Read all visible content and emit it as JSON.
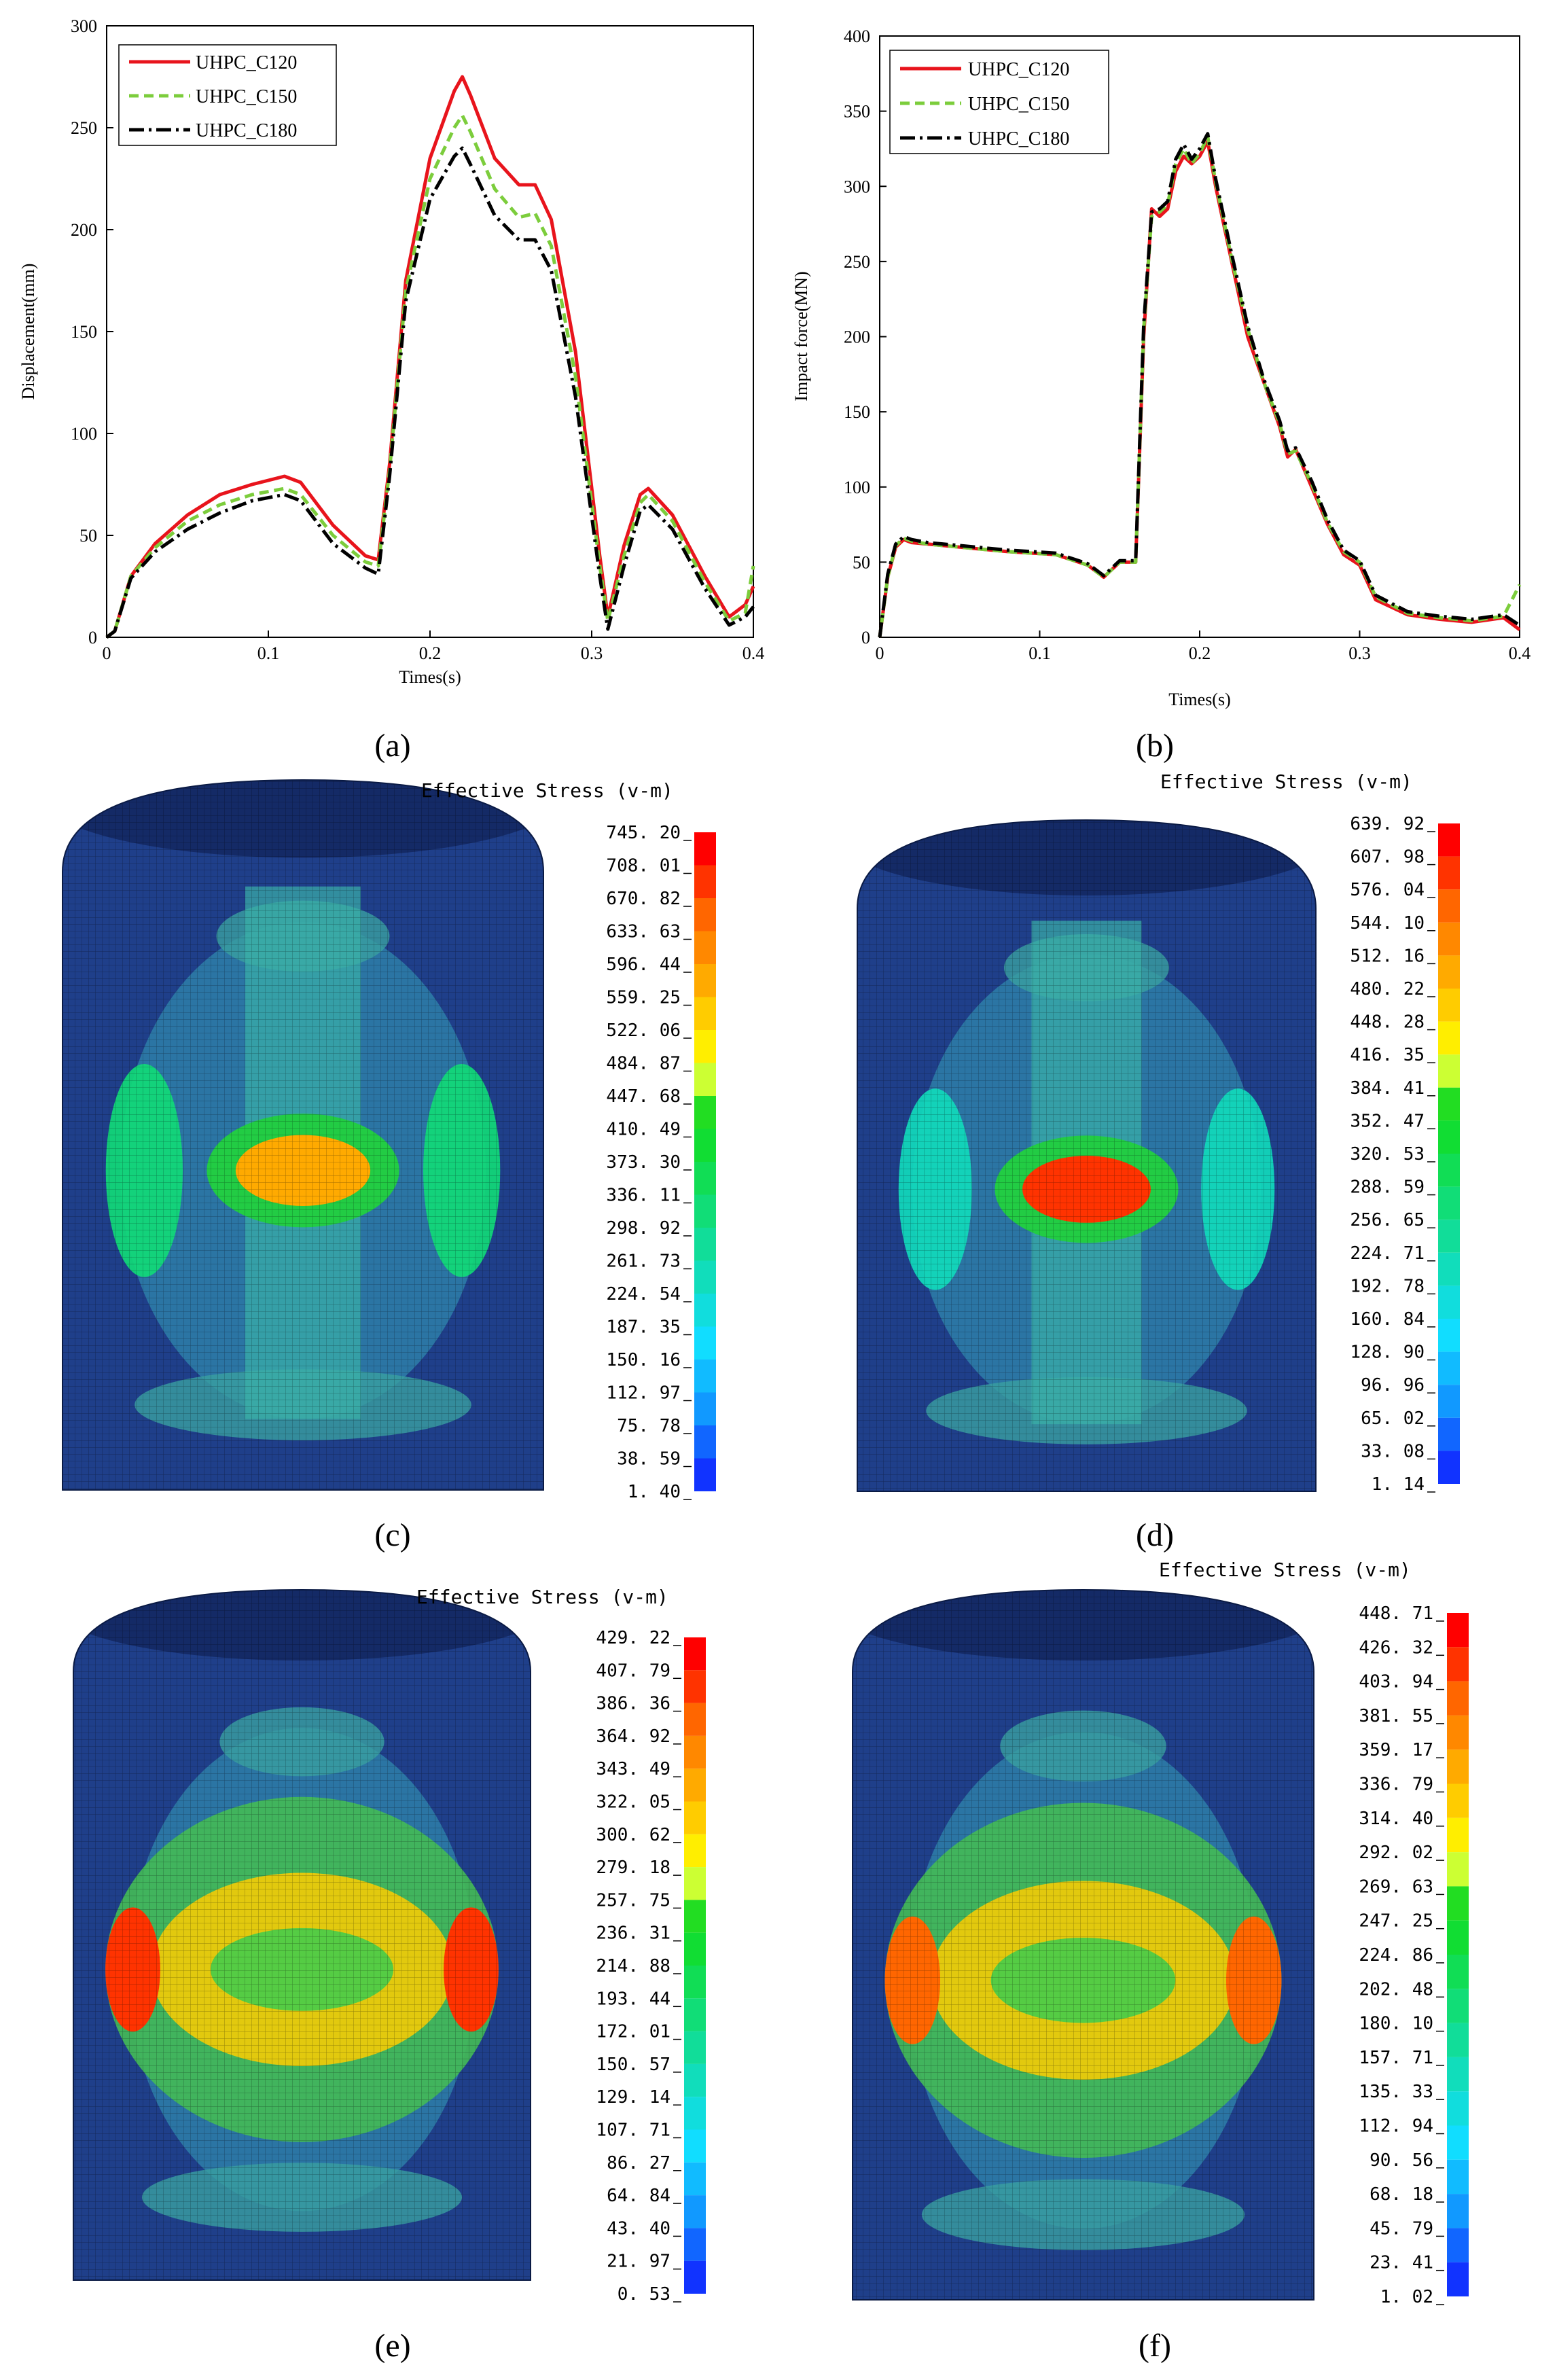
{
  "chart_data": [
    {
      "type": "line",
      "panel_label": "(a)",
      "xlabel": "Times(s)",
      "ylabel": "Displacement(mm)",
      "xlim": [
        0,
        0.4
      ],
      "ylim": [
        0,
        300
      ],
      "xticks": [
        "0",
        "0.1",
        "0.2",
        "0.3",
        "0.4"
      ],
      "yticks": [
        "0",
        "50",
        "100",
        "150",
        "200",
        "250",
        "300"
      ],
      "legend_position": "top-left",
      "series": [
        {
          "name": "UHPC_C120",
          "color": "#e8141c",
          "dash": "solid",
          "x": [
            0,
            0.005,
            0.015,
            0.03,
            0.05,
            0.07,
            0.09,
            0.11,
            0.12,
            0.14,
            0.16,
            0.168,
            0.175,
            0.185,
            0.2,
            0.215,
            0.22,
            0.225,
            0.24,
            0.255,
            0.265,
            0.275,
            0.29,
            0.305,
            0.31,
            0.32,
            0.33,
            0.335,
            0.35,
            0.37,
            0.385,
            0.395,
            0.4
          ],
          "y": [
            0,
            3,
            30,
            46,
            60,
            70,
            75,
            79,
            76,
            55,
            40,
            38,
            85,
            175,
            235,
            268,
            275,
            266,
            235,
            222,
            222,
            205,
            140,
            40,
            10,
            45,
            70,
            73,
            60,
            30,
            10,
            16,
            25
          ]
        },
        {
          "name": "UHPC_C150",
          "color": "#7ccd3c",
          "dash": "dashed",
          "x": [
            0,
            0.005,
            0.015,
            0.03,
            0.05,
            0.07,
            0.09,
            0.11,
            0.12,
            0.14,
            0.16,
            0.168,
            0.175,
            0.185,
            0.2,
            0.215,
            0.22,
            0.225,
            0.24,
            0.255,
            0.265,
            0.275,
            0.29,
            0.305,
            0.31,
            0.32,
            0.33,
            0.335,
            0.35,
            0.37,
            0.385,
            0.395,
            0.4
          ],
          "y": [
            0,
            3,
            30,
            44,
            57,
            65,
            70,
            73,
            70,
            50,
            37,
            35,
            82,
            170,
            225,
            250,
            256,
            248,
            220,
            206,
            208,
            192,
            128,
            35,
            8,
            40,
            66,
            70,
            57,
            27,
            8,
            12,
            35
          ]
        },
        {
          "name": "UHPC_C180",
          "color": "#000000",
          "dash": "dashdot",
          "x": [
            0,
            0.005,
            0.015,
            0.03,
            0.05,
            0.07,
            0.09,
            0.11,
            0.12,
            0.14,
            0.16,
            0.168,
            0.175,
            0.185,
            0.2,
            0.215,
            0.22,
            0.225,
            0.24,
            0.255,
            0.265,
            0.275,
            0.29,
            0.305,
            0.31,
            0.32,
            0.33,
            0.335,
            0.35,
            0.37,
            0.385,
            0.395,
            0.4
          ],
          "y": [
            0,
            3,
            29,
            42,
            53,
            61,
            67,
            70,
            67,
            46,
            34,
            31,
            79,
            165,
            215,
            236,
            240,
            232,
            207,
            195,
            195,
            180,
            118,
            30,
            4,
            35,
            62,
            65,
            53,
            24,
            6,
            10,
            15
          ]
        }
      ]
    },
    {
      "type": "line",
      "panel_label": "(b)",
      "xlabel": "Times(s)",
      "ylabel": "Impact force(MN)",
      "xlim": [
        0,
        0.4
      ],
      "ylim": [
        0,
        400
      ],
      "xticks": [
        "0",
        "0.1",
        "0.2",
        "0.3",
        "0.4"
      ],
      "yticks": [
        "0",
        "50",
        "100",
        "150",
        "200",
        "250",
        "300",
        "350",
        "400"
      ],
      "legend_position": "top-left",
      "series": [
        {
          "name": "UHPC_C120",
          "color": "#e8141c",
          "dash": "solid",
          "x": [
            0,
            0.005,
            0.01,
            0.015,
            0.02,
            0.03,
            0.05,
            0.08,
            0.11,
            0.13,
            0.14,
            0.145,
            0.15,
            0.16,
            0.165,
            0.17,
            0.175,
            0.18,
            0.185,
            0.19,
            0.195,
            0.2,
            0.205,
            0.21,
            0.22,
            0.23,
            0.24,
            0.25,
            0.255,
            0.26,
            0.27,
            0.28,
            0.29,
            0.3,
            0.31,
            0.33,
            0.35,
            0.37,
            0.39,
            0.4
          ],
          "y": [
            0,
            40,
            60,
            65,
            63,
            62,
            60,
            57,
            55,
            48,
            40,
            45,
            50,
            50,
            200,
            285,
            280,
            285,
            310,
            320,
            315,
            320,
            330,
            300,
            250,
            200,
            170,
            140,
            120,
            125,
            100,
            75,
            55,
            48,
            25,
            15,
            12,
            10,
            13,
            5
          ]
        },
        {
          "name": "UHPC_C150",
          "color": "#7ccd3c",
          "dash": "dashed",
          "x": [
            0,
            0.005,
            0.01,
            0.015,
            0.02,
            0.03,
            0.05,
            0.08,
            0.11,
            0.13,
            0.14,
            0.145,
            0.15,
            0.16,
            0.165,
            0.17,
            0.175,
            0.18,
            0.185,
            0.19,
            0.195,
            0.2,
            0.205,
            0.21,
            0.22,
            0.23,
            0.24,
            0.25,
            0.255,
            0.26,
            0.27,
            0.28,
            0.29,
            0.3,
            0.31,
            0.33,
            0.35,
            0.37,
            0.39,
            0.4
          ],
          "y": [
            0,
            40,
            61,
            66,
            64,
            62,
            60,
            57,
            55,
            48,
            40,
            45,
            50,
            50,
            205,
            280,
            283,
            288,
            315,
            325,
            315,
            322,
            333,
            303,
            252,
            205,
            170,
            142,
            122,
            124,
            102,
            76,
            57,
            50,
            27,
            16,
            13,
            11,
            14,
            35
          ]
        },
        {
          "name": "UHPC_C180",
          "color": "#000000",
          "dash": "dashdot",
          "x": [
            0,
            0.005,
            0.01,
            0.015,
            0.02,
            0.03,
            0.05,
            0.08,
            0.11,
            0.13,
            0.14,
            0.145,
            0.15,
            0.16,
            0.165,
            0.17,
            0.175,
            0.18,
            0.185,
            0.19,
            0.195,
            0.2,
            0.205,
            0.21,
            0.22,
            0.23,
            0.24,
            0.25,
            0.255,
            0.26,
            0.27,
            0.28,
            0.29,
            0.3,
            0.31,
            0.33,
            0.35,
            0.37,
            0.39,
            0.4
          ],
          "y": [
            0,
            42,
            62,
            67,
            65,
            63,
            61,
            58,
            56,
            49,
            41,
            46,
            51,
            51,
            208,
            283,
            285,
            290,
            318,
            328,
            318,
            325,
            335,
            305,
            255,
            207,
            172,
            144,
            124,
            126,
            104,
            78,
            58,
            51,
            28,
            17,
            14,
            12,
            15,
            8
          ]
        }
      ]
    },
    {
      "type": "heatmap",
      "panel_label": "(c)",
      "title": "Effective Stress (v-m)",
      "colorbar_labels": [
        "745.20",
        "708.01",
        "670.82",
        "633.63",
        "596.44",
        "559.25",
        "522.06",
        "484.87",
        "447.68",
        "410.49",
        "373.30",
        "336.11",
        "298.92",
        "261.73",
        "224.54",
        "187.35",
        "150.16",
        "112.97",
        "75.78",
        "38.59",
        "1.40"
      ],
      "hotspots": [
        {
          "name": "center",
          "level": 0.8
        },
        {
          "name": "left",
          "level": 0.45
        },
        {
          "name": "right",
          "level": 0.45
        }
      ]
    },
    {
      "type": "heatmap",
      "panel_label": "(d)",
      "title": "Effective Stress (v-m)",
      "colorbar_labels": [
        "639.92",
        "607.98",
        "576.04",
        "544.10",
        "512.16",
        "480.22",
        "448.28",
        "416.35",
        "384.41",
        "352.47",
        "320.53",
        "288.59",
        "256.65",
        "224.71",
        "192.78",
        "160.84",
        "128.90",
        "96.96",
        "65.02",
        "33.08",
        "1.14"
      ],
      "hotspots": [
        {
          "name": "center",
          "level": 0.95
        },
        {
          "name": "left",
          "level": 0.35
        },
        {
          "name": "right",
          "level": 0.35
        }
      ]
    },
    {
      "type": "heatmap",
      "panel_label": "(e)",
      "title": "Effective Stress (v-m)",
      "colorbar_labels": [
        "429.22",
        "407.79",
        "386.36",
        "364.92",
        "343.49",
        "322.05",
        "300.62",
        "279.18",
        "257.75",
        "236.31",
        "214.88",
        "193.44",
        "172.01",
        "150.57",
        "129.14",
        "107.71",
        "86.27",
        "64.84",
        "43.40",
        "21.97",
        "0.53"
      ],
      "hotspots": [
        {
          "name": "center",
          "level": 0.75
        },
        {
          "name": "left",
          "level": 0.95
        },
        {
          "name": "right",
          "level": 0.95
        }
      ]
    },
    {
      "type": "heatmap",
      "panel_label": "(f)",
      "title": "Effective Stress (v-m)",
      "colorbar_labels": [
        "448.71",
        "426.32",
        "403.94",
        "381.55",
        "359.17",
        "336.79",
        "314.40",
        "292.02",
        "269.63",
        "247.25",
        "224.86",
        "202.48",
        "180.10",
        "157.71",
        "135.33",
        "112.94",
        "90.56",
        "68.18",
        "45.79",
        "23.41",
        "1.02"
      ],
      "hotspots": [
        {
          "name": "center",
          "level": 0.75
        },
        {
          "name": "left",
          "level": 0.9
        },
        {
          "name": "right",
          "level": 0.9
        }
      ]
    }
  ],
  "colorbar_colors": [
    "#ff0000",
    "#ff3300",
    "#ff6600",
    "#ff8800",
    "#ffaa00",
    "#ffcc00",
    "#ffee00",
    "#ccff33",
    "#22dd22",
    "#11dd33",
    "#11dd55",
    "#11dd77",
    "#11dd99",
    "#11ddbb",
    "#11dddd",
    "#11ddff",
    "#11bbff",
    "#1199ff",
    "#1166ff",
    "#1133ff",
    "#0000ff"
  ]
}
